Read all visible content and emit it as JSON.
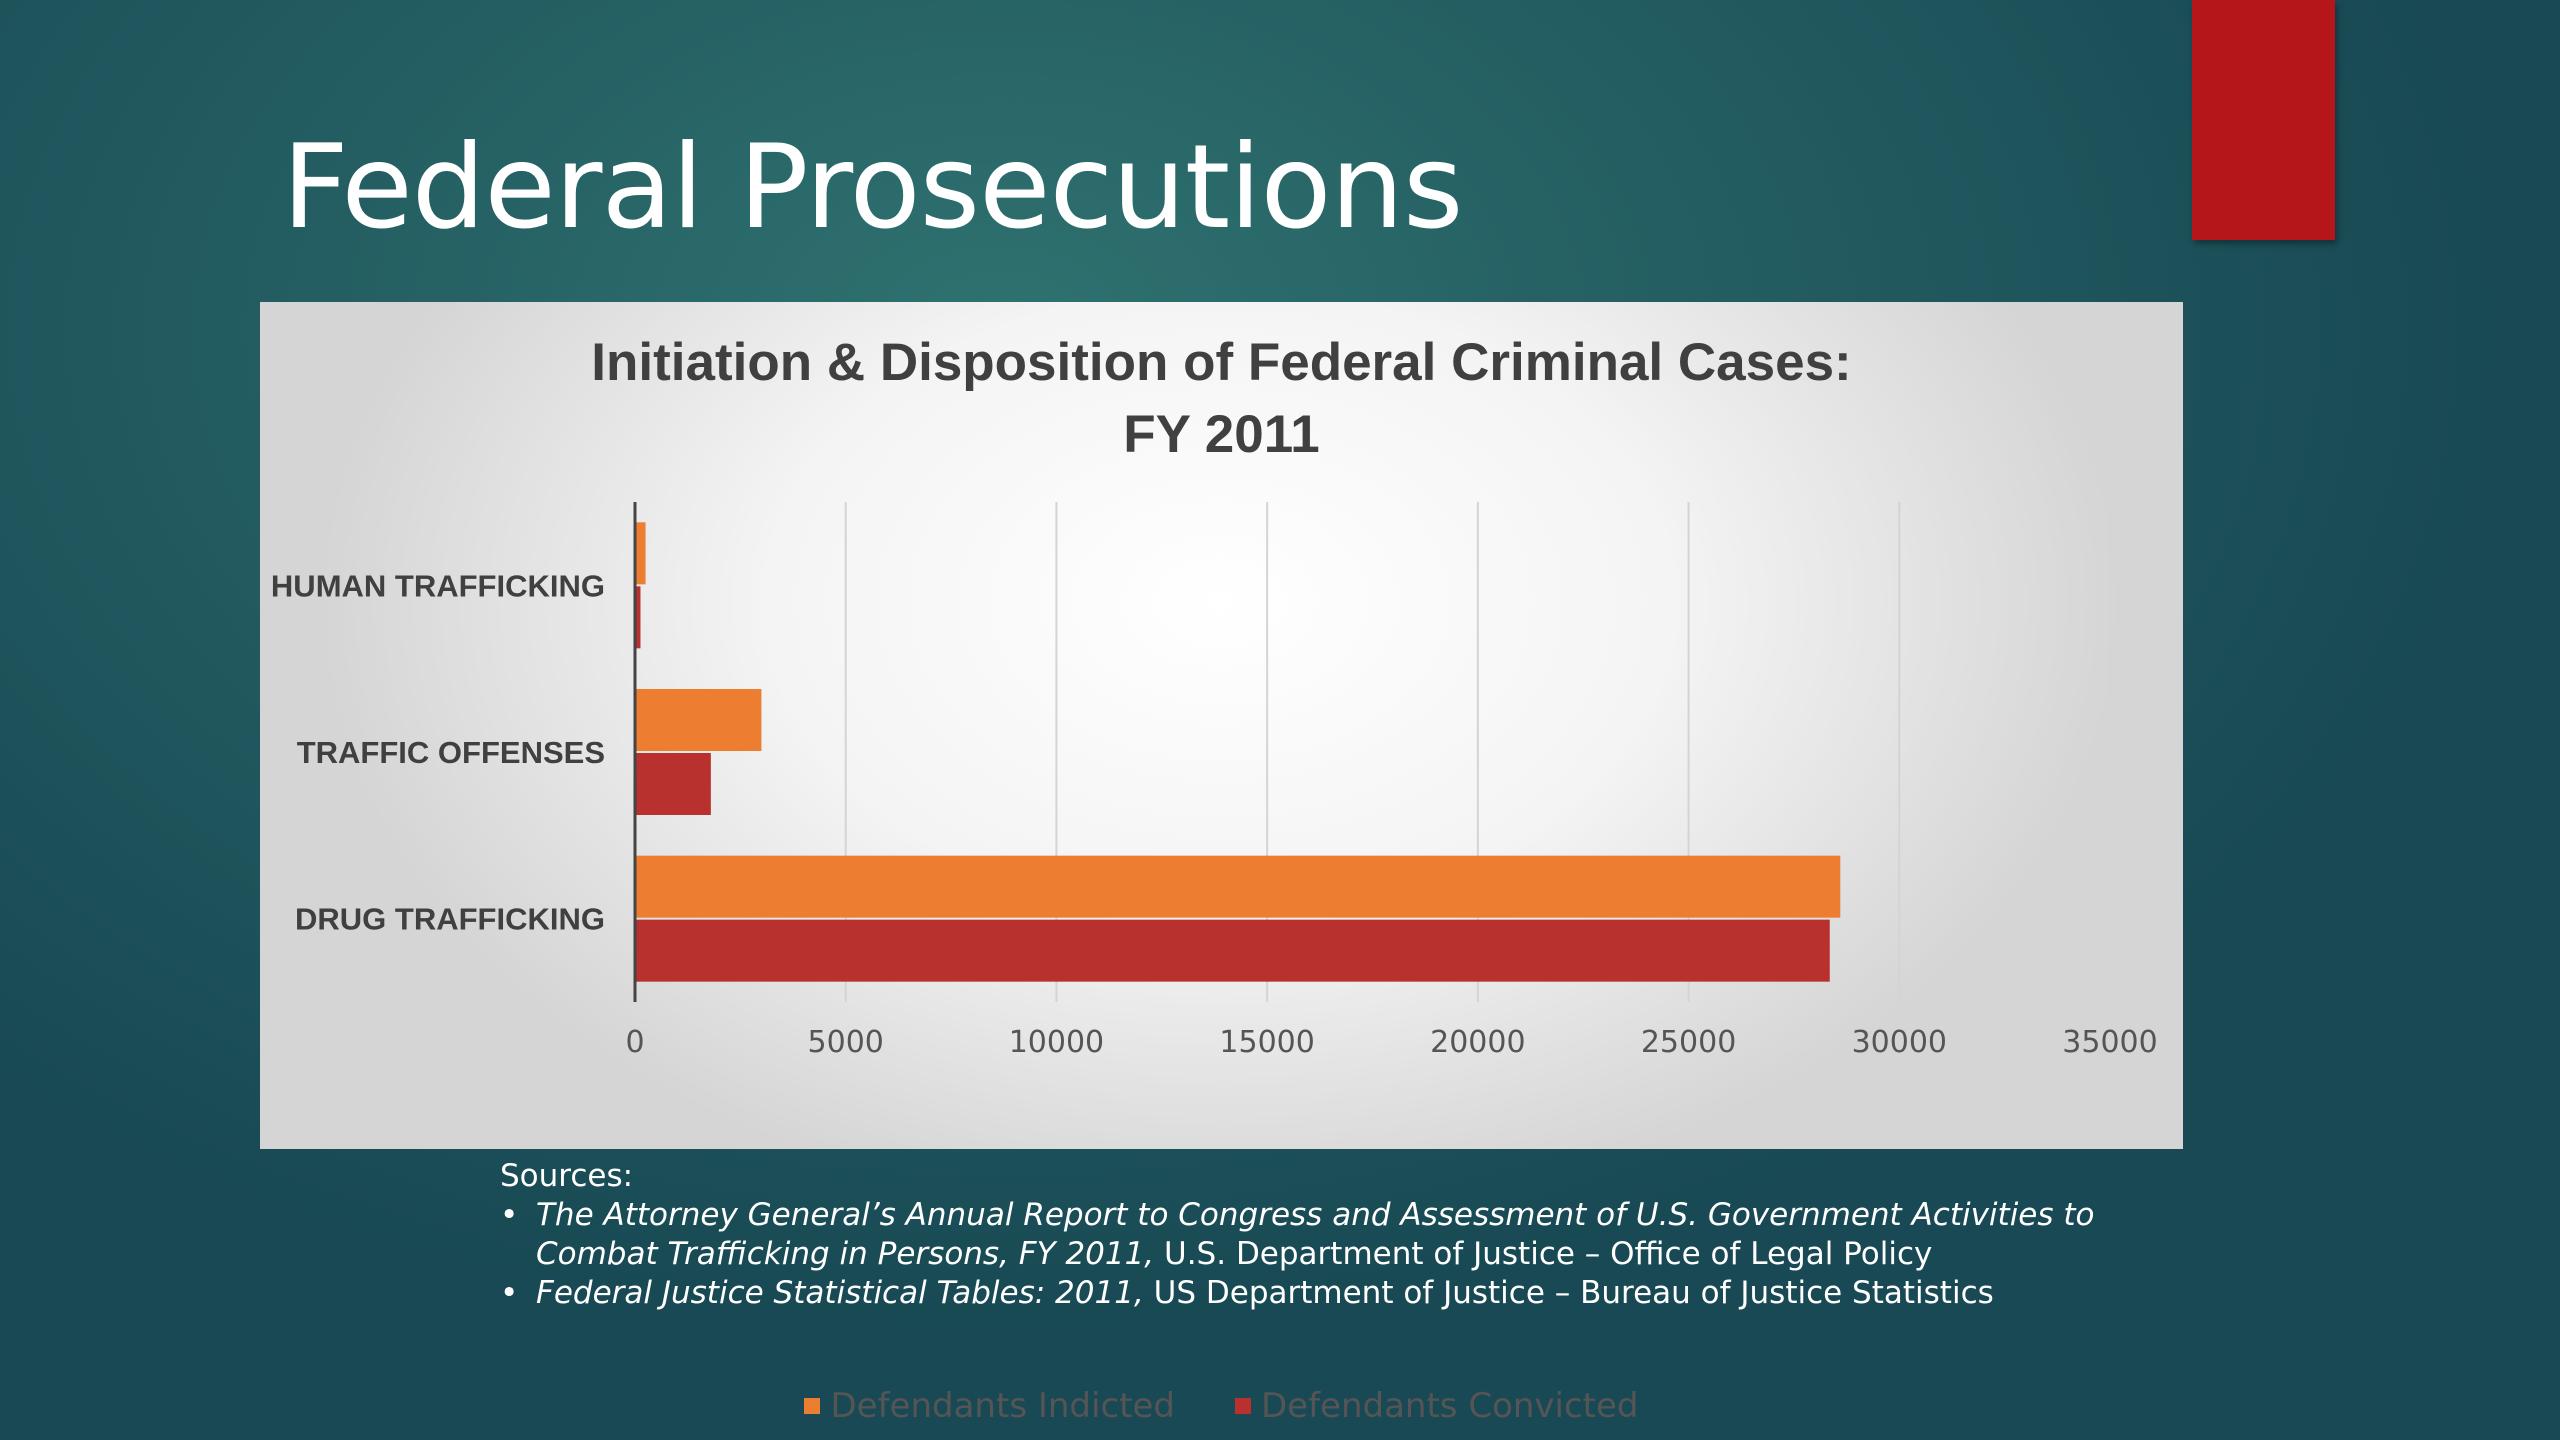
{
  "slide": {
    "title": "Federal Prosecutions",
    "accent_color": "#b4161a"
  },
  "chart_data": {
    "type": "bar",
    "orientation": "horizontal",
    "title": "Initiation & Disposition of Federal Criminal Cases: FY 2011",
    "title_lines": [
      "Initiation & Disposition of Federal Criminal Cases:",
      "FY 2011"
    ],
    "categories": [
      "HUMAN TRAFFICKING",
      "TRAFFIC OFFENSES",
      "DRUG TRAFFICKING"
    ],
    "series": [
      {
        "name": "Defendants Indicted",
        "color": "#ed7d31",
        "values": [
          250,
          3000,
          28600
        ]
      },
      {
        "name": "Defendants Convicted",
        "color": "#b8312f",
        "values": [
          130,
          1800,
          28350
        ]
      }
    ],
    "xlim": [
      0,
      35000
    ],
    "xticks": [
      0,
      5000,
      10000,
      15000,
      20000,
      25000,
      30000,
      35000
    ],
    "xlabel": "",
    "ylabel": "",
    "grid": "vertical",
    "legend_position": "bottom"
  },
  "sources": {
    "heading": "Sources:",
    "items": [
      {
        "italic": "The Attorney General’s Annual Report to Congress and Assessment of U.S. Government Activities to Combat Trafficking in Persons, FY 2011,",
        "normal": " U.S. Department of Justice – Office of Legal Policy"
      },
      {
        "italic": "Federal Justice Statistical Tables: 2011,",
        "normal": " US Department of Justice – Bureau of Justice Statistics"
      }
    ]
  }
}
